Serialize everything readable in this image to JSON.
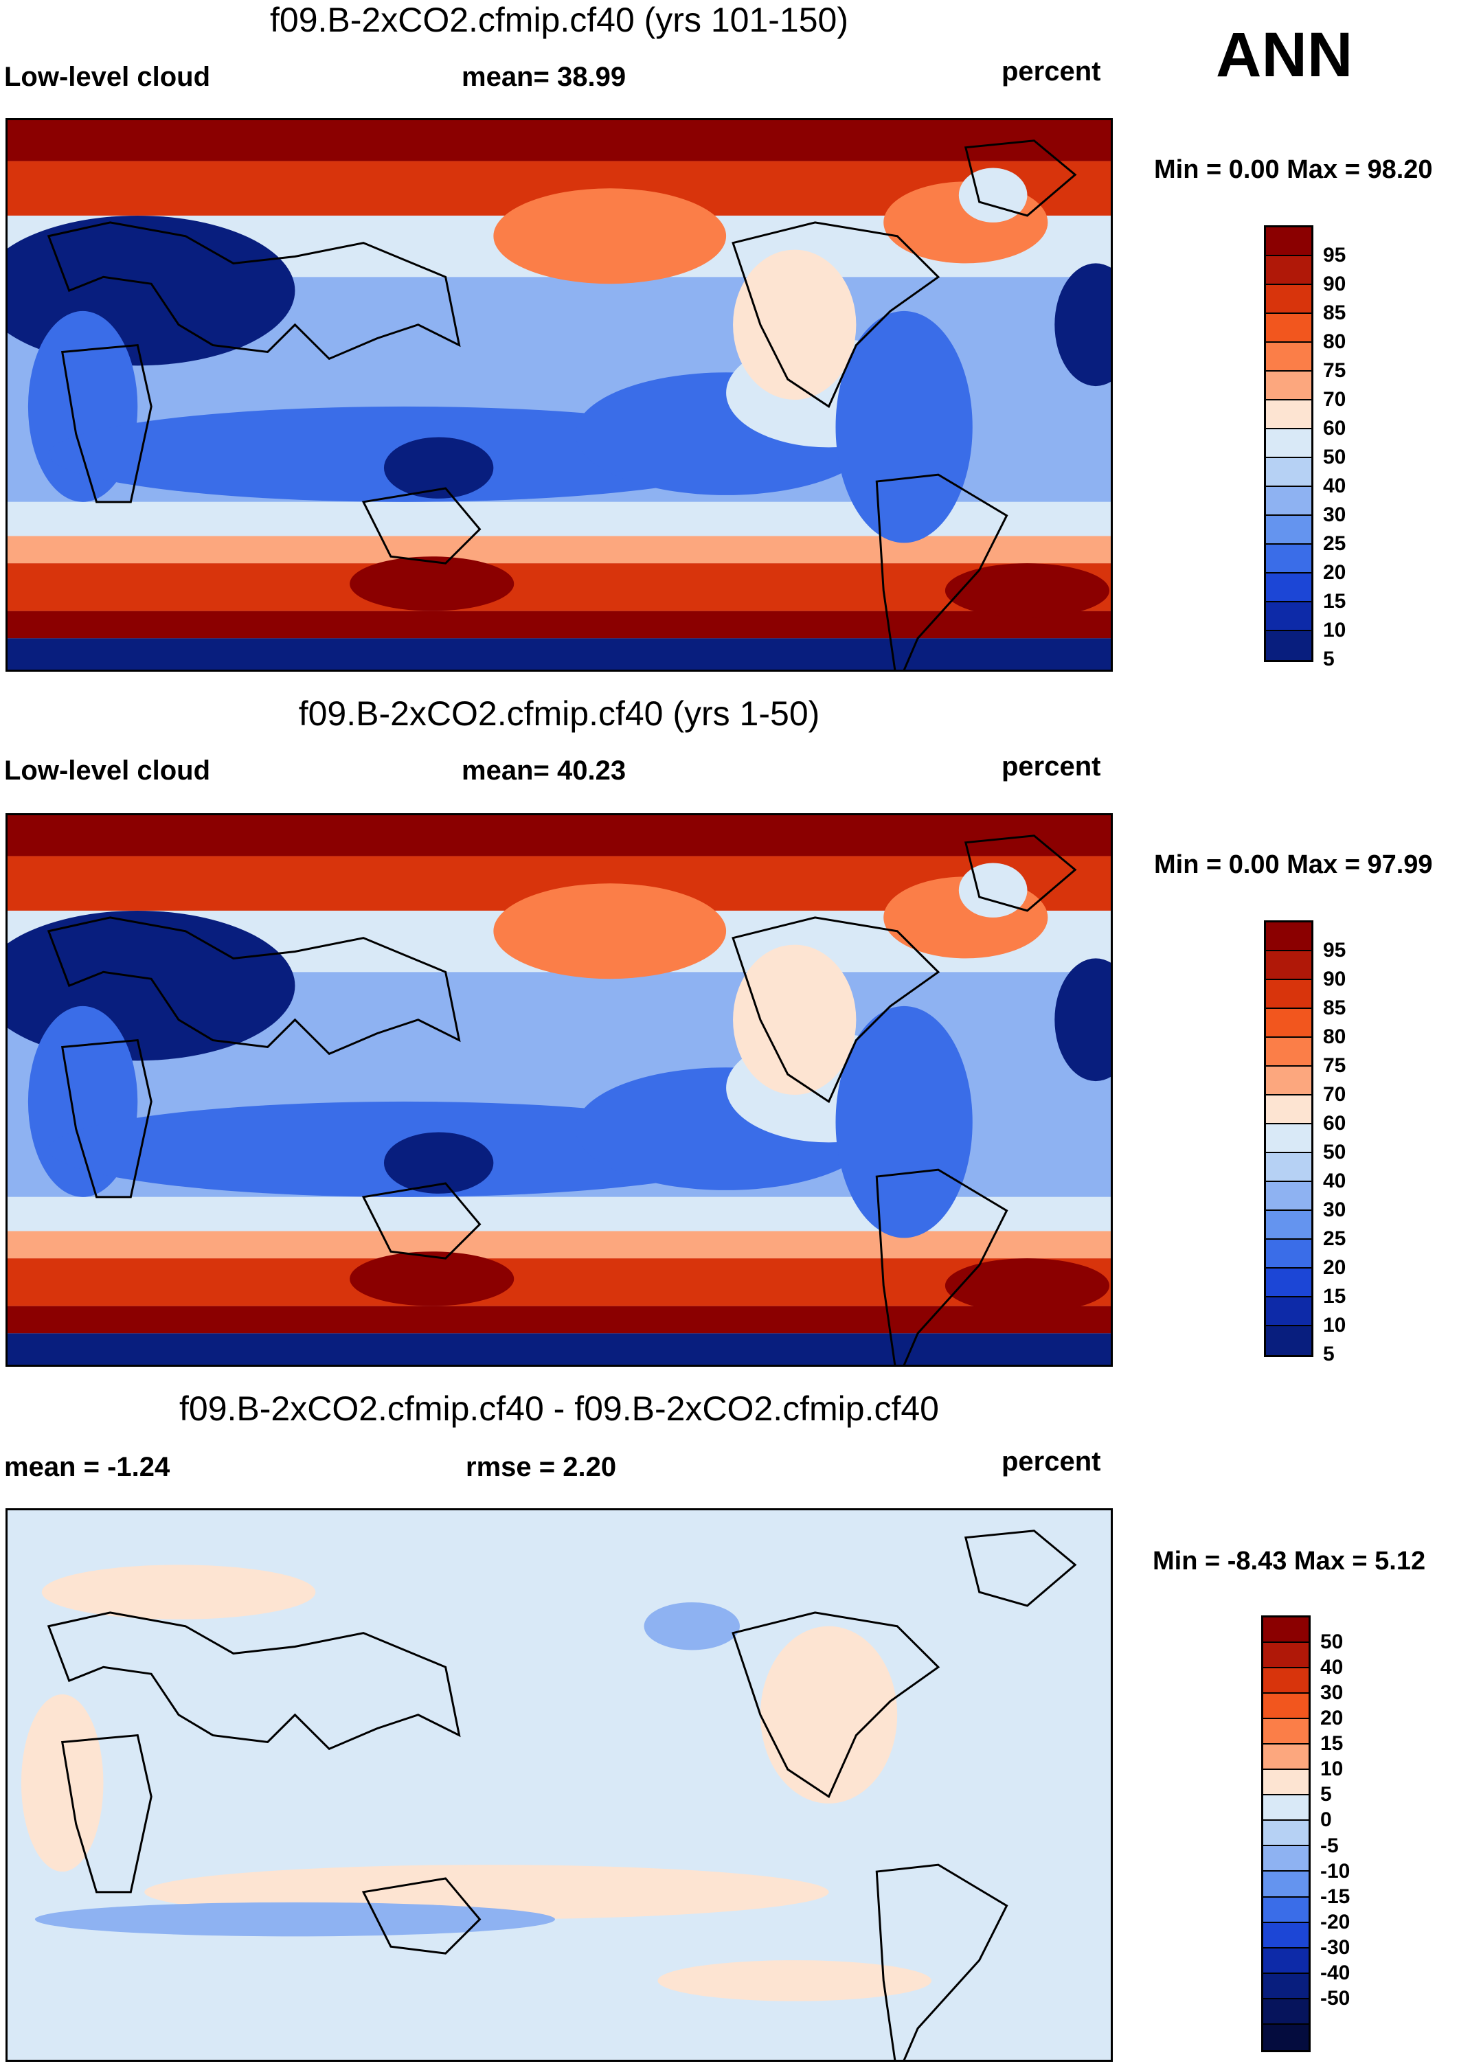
{
  "season": "ANN",
  "panels": [
    {
      "title": "f09.B-2xCO2.cfmip.cf40 (yrs 101-150)",
      "left_label": "Low-level cloud",
      "center_label": "mean=  38.99",
      "right_label": "percent",
      "minmax_label": "Min =   0.00 Max =  98.20",
      "colorbar": {
        "colors": [
          "#8b0000",
          "#b01808",
          "#d8340c",
          "#f2561e",
          "#fb7e48",
          "#fca77e",
          "#fde4d2",
          "#d9e9f7",
          "#b6d1f4",
          "#8eb2f2",
          "#6494ef",
          "#3a6de8",
          "#1c46d6",
          "#0d2aa8",
          "#081e7e"
        ],
        "ticks": [
          "95",
          "90",
          "85",
          "80",
          "75",
          "70",
          "60",
          "50",
          "40",
          "30",
          "25",
          "20",
          "15",
          "10",
          "5"
        ]
      }
    },
    {
      "title": "f09.B-2xCO2.cfmip.cf40 (yrs 1-50)",
      "left_label": "Low-level cloud",
      "center_label": "mean=  40.23",
      "right_label": "percent",
      "minmax_label": "Min =   0.00 Max =  97.99",
      "colorbar": {
        "colors": [
          "#8b0000",
          "#b01808",
          "#d8340c",
          "#f2561e",
          "#fb7e48",
          "#fca77e",
          "#fde4d2",
          "#d9e9f7",
          "#b6d1f4",
          "#8eb2f2",
          "#6494ef",
          "#3a6de8",
          "#1c46d6",
          "#0d2aa8",
          "#081e7e"
        ],
        "ticks": [
          "95",
          "90",
          "85",
          "80",
          "75",
          "70",
          "60",
          "50",
          "40",
          "30",
          "25",
          "20",
          "15",
          "10",
          "5"
        ]
      }
    },
    {
      "title": "f09.B-2xCO2.cfmip.cf40 - f09.B-2xCO2.cfmip.cf40",
      "left_label": "mean =  -1.24",
      "center_label": "rmse =   2.20",
      "right_label": "percent",
      "minmax_label": "Min =  -8.43 Max =   5.12",
      "colorbar": {
        "colors": [
          "#8b0000",
          "#b01808",
          "#d8340c",
          "#f2561e",
          "#fb7e48",
          "#fca77e",
          "#fde4d2",
          "#d9e9f7",
          "#b6d1f4",
          "#8eb2f2",
          "#6494ef",
          "#3a6de8",
          "#1c46d6",
          "#0d2aa8",
          "#081e7e",
          "#06145c",
          "#040c3e"
        ],
        "ticks": [
          "50",
          "40",
          "30",
          "20",
          "15",
          "10",
          "5",
          "0",
          "-5",
          "-10",
          "-15",
          "-20",
          "-30",
          "-40",
          "-50"
        ]
      }
    }
  ],
  "map_colors": {
    "deep_red": "#8b0000",
    "red": "#d8340c",
    "orange": "#fb7e48",
    "salmon": "#fca77e",
    "pale_peach": "#fde4d2",
    "pale_blue": "#d9e9f7",
    "light_blue": "#8eb2f2",
    "blue": "#3a6de8",
    "navy": "#081e7e",
    "coast": "#000000"
  }
}
